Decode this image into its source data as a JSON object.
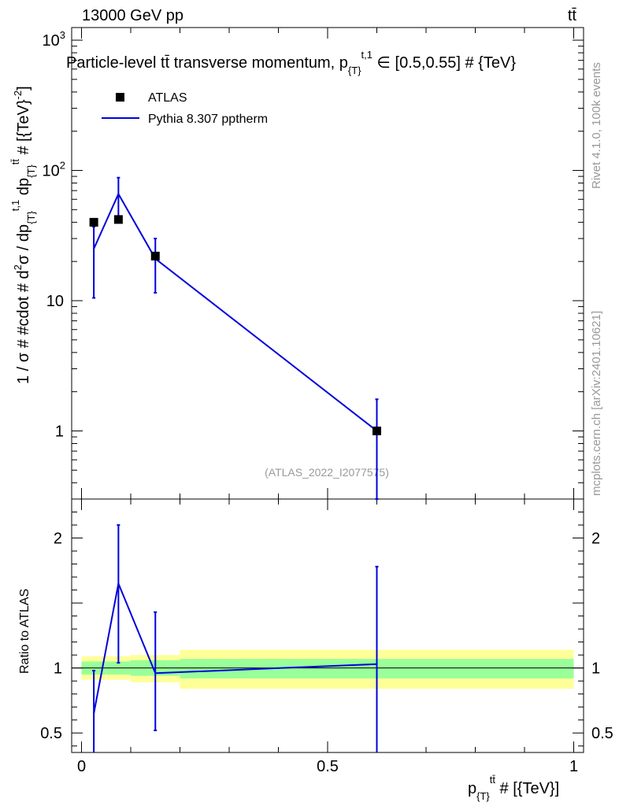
{
  "header": {
    "energy_label": "13000 GeV pp",
    "process_label": "tt̄"
  },
  "side_labels": {
    "rivet": "Rivet 4.1.0,  100k events",
    "mcplots": "mcplots.cern.ch [arXiv:2401.10621]"
  },
  "colors": {
    "data": "#000000",
    "mc": "#0000dd",
    "band_inner": "#99ff99",
    "band_outer": "#ffff99",
    "watermark": "#999999"
  },
  "chart_data": [
    {
      "type": "scatter",
      "panel": "main",
      "title": "Particle-level tt̄ transverse momentum, p_{T}^{t,1} ∈ [0.5,0.55] # {TeV}",
      "title_parts": {
        "prefix": "Particle-level tt̄ transverse momentum, p",
        "sub": "{T}",
        "sup": "t,1",
        "suffix": " ∈ [0.5,0.55] # {TeV}"
      },
      "ylabel": "1 / σ # #cdot # d²σ / dp_{T}^{t,1} dp_{T}^{tt̄} # [{TeV}⁻²]",
      "ylabel_parts": {
        "a": "1 / σ # #cdot # d",
        "a_sup": "2",
        "b": "σ / dp",
        "b_sub": "{T}",
        "b_sup": "t,1",
        "c": " dp",
        "c_sub": "{T}",
        "c_sup": "tt̄",
        "d": " # [{TeV}",
        "d_sup": "-2",
        "e": "]"
      },
      "xlim": [
        -0.02,
        1.02
      ],
      "ylim": [
        0.3,
        1250
      ],
      "yscale": "log",
      "y_ticks": [
        {
          "value": 1,
          "label": "1"
        },
        {
          "value": 10,
          "label": "10"
        },
        {
          "value": 100,
          "label": "10",
          "exp": "2"
        },
        {
          "value": 1000,
          "label": "10",
          "exp": "3"
        }
      ],
      "legend": {
        "position": "top-left",
        "entries": [
          {
            "label": "ATLAS",
            "style": "marker"
          },
          {
            "label": "Pythia 8.307 pptherm",
            "style": "line"
          }
        ]
      },
      "watermark": "(ATLAS_2022_I2077575)",
      "series": [
        {
          "name": "ATLAS",
          "style": "marker",
          "x": [
            0.025,
            0.075,
            0.15,
            0.6
          ],
          "y": [
            40,
            42,
            22,
            1.0
          ]
        },
        {
          "name": "Pythia 8.307 pptherm",
          "style": "line",
          "x": [
            0.025,
            0.075,
            0.15,
            0.6
          ],
          "y": [
            25,
            66,
            21,
            1.0
          ],
          "err_low": [
            10.5,
            42,
            11.5,
            0.3
          ],
          "err_high": [
            37,
            88,
            30,
            1.75
          ]
        }
      ]
    },
    {
      "type": "scatter",
      "panel": "ratio",
      "ylabel": "Ratio to ATLAS",
      "xlabel": "p_{T}^{tt̄} # [{TeV}]",
      "xlabel_parts": {
        "a": "p",
        "sub": "{T}",
        "sup": "tt̄",
        "b": " # [{TeV}]"
      },
      "xlim": [
        -0.02,
        1.02
      ],
      "ylim": [
        0.35,
        2.3
      ],
      "x_ticks": [
        {
          "value": 0,
          "label": "0"
        },
        {
          "value": 0.5,
          "label": "0.5"
        },
        {
          "value": 1,
          "label": "1"
        }
      ],
      "y_ticks": [
        {
          "value": 0.5,
          "label": "0.5"
        },
        {
          "value": 1,
          "label": "1"
        },
        {
          "value": 1.5,
          "label": ""
        },
        {
          "value": 2,
          "label": "2"
        }
      ],
      "bands": [
        {
          "x_low": 0.0,
          "x_high": 0.05,
          "inner": [
            0.95,
            1.05
          ],
          "outer": [
            0.91,
            1.09
          ]
        },
        {
          "x_low": 0.05,
          "x_high": 0.1,
          "inner": [
            0.95,
            1.05
          ],
          "outer": [
            0.91,
            1.09
          ]
        },
        {
          "x_low": 0.1,
          "x_high": 0.2,
          "inner": [
            0.94,
            1.06
          ],
          "outer": [
            0.89,
            1.1
          ]
        },
        {
          "x_low": 0.2,
          "x_high": 1.0,
          "inner": [
            0.92,
            1.07
          ],
          "outer": [
            0.84,
            1.14
          ]
        }
      ],
      "reference_line": 1.0,
      "series": [
        {
          "name": "Pythia 8.307 pptherm",
          "x": [
            0.025,
            0.075,
            0.15,
            0.6
          ],
          "y": [
            0.65,
            1.65,
            0.96,
            1.03
          ],
          "err_low": [
            0.3,
            1.04,
            0.52,
            0.3
          ],
          "err_high": [
            0.98,
            2.1,
            1.43,
            1.78
          ]
        }
      ]
    }
  ]
}
